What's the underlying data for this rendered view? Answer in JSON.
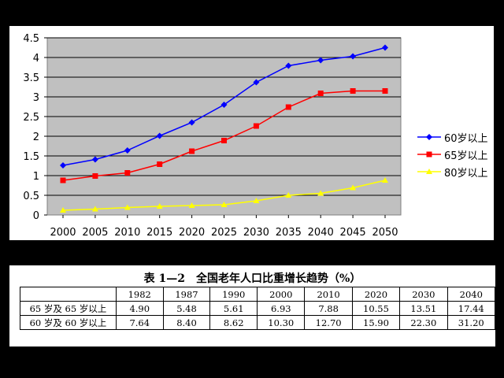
{
  "colors": {
    "series_60": "#0000ff",
    "series_65": "#ff0000",
    "series_80": "#ffff00",
    "plot_bg": "#c0c0c0"
  },
  "chart_data": {
    "type": "line",
    "title": "",
    "xlabel": "",
    "ylabel": "",
    "x": [
      2000,
      2005,
      2010,
      2015,
      2020,
      2025,
      2030,
      2035,
      2040,
      2045,
      2050
    ],
    "x_tick_labels": [
      "2000",
      "2005",
      "2010",
      "2015",
      "2020",
      "2025",
      "2030",
      "2035",
      "2040",
      "2045",
      "2050"
    ],
    "ylim": [
      0,
      4.5
    ],
    "y_ticks": [
      0,
      0.5,
      1,
      1.5,
      2,
      2.5,
      3,
      3.5,
      4,
      4.5
    ],
    "y_tick_labels": [
      "0",
      "0.5",
      "1",
      "1.5",
      "2",
      "2.5",
      "3",
      "3.5",
      "4",
      "4.5"
    ],
    "grid": true,
    "legend_position": "right",
    "series": [
      {
        "name": "60岁以上",
        "color": "#0000ff",
        "marker": "diamond",
        "values": [
          1.26,
          1.41,
          1.64,
          2.01,
          2.35,
          2.8,
          3.37,
          3.79,
          3.93,
          4.03,
          4.25
        ]
      },
      {
        "name": "65岁以上",
        "color": "#ff0000",
        "marker": "square",
        "values": [
          0.88,
          0.99,
          1.07,
          1.29,
          1.62,
          1.89,
          2.26,
          2.74,
          3.09,
          3.15,
          3.15
        ]
      },
      {
        "name": "80岁以上",
        "color": "#ffff00",
        "marker": "triangle",
        "values": [
          0.12,
          0.15,
          0.19,
          0.22,
          0.24,
          0.26,
          0.36,
          0.5,
          0.55,
          0.69,
          0.88
        ]
      }
    ]
  },
  "table": {
    "title": "表 1—2　全国老年人口比重增长趋势（%）",
    "headers": [
      "",
      "1982",
      "1987",
      "1990",
      "2000",
      "2010",
      "2020",
      "2030",
      "2040"
    ],
    "rows": [
      [
        "65 岁及 65 岁以上",
        "4.90",
        "5.48",
        "5.61",
        "6.93",
        "7.88",
        "10.55",
        "13.51",
        "17.44"
      ],
      [
        "60 岁及 60 岁以上",
        "7.64",
        "8.40",
        "8.62",
        "10.30",
        "12.70",
        "15.90",
        "22.30",
        "31.20"
      ]
    ]
  }
}
